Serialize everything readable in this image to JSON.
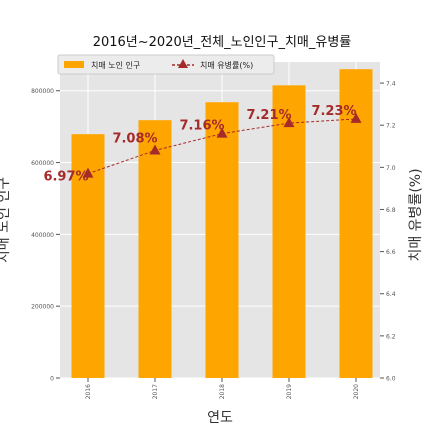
{
  "chart_data": {
    "type": "bar",
    "title": "2016년~2020년_전체_노인인구_치매_유병률",
    "xlabel": "연도",
    "ylabel_left": "치매 노인 인구",
    "ylabel_right": "치매 유병률(%)",
    "categories": [
      "2016",
      "2017",
      "2018",
      "2019",
      "2020"
    ],
    "series": [
      {
        "name": "치매 노인 인구",
        "kind": "bar",
        "axis": "left",
        "color": "#FFA500",
        "values": [
          679000,
          718000,
          768000,
          815000,
          860000
        ]
      },
      {
        "name": "치매 유병률(%)",
        "kind": "line",
        "axis": "right",
        "color": "#A52A2A",
        "values": [
          6.97,
          7.08,
          7.16,
          7.21,
          7.23
        ]
      }
    ],
    "data_labels": [
      "6.97%",
      "7.08%",
      "7.16%",
      "7.21%",
      "7.23%"
    ],
    "ylim_left": [
      0,
      880000
    ],
    "yticks_left": [
      "0",
      "200000",
      "400000",
      "600000",
      "800000"
    ],
    "ylim_right": [
      6.0,
      7.5
    ],
    "yticks_right": [
      "6.0",
      "6.2",
      "6.4",
      "6.6",
      "6.8",
      "7.0",
      "7.2",
      "7.4"
    ],
    "legend_position": "top-left",
    "grid": true,
    "background": "#E5E5E5"
  }
}
